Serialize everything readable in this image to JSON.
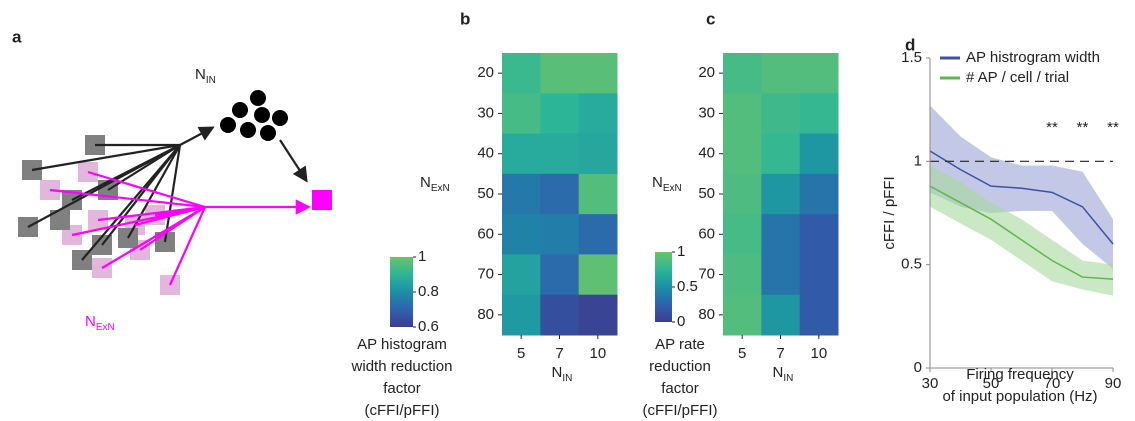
{
  "panel_a": {
    "panel": "a",
    "inhibitory_label": [
      "N",
      "IN"
    ],
    "excitatory_label": [
      "N",
      "ExN"
    ]
  },
  "chart_data": [
    {
      "type": "heatmap",
      "panel": "b",
      "categories": [
        "5",
        "7",
        "10"
      ],
      "rows": [
        "20",
        "30",
        "40",
        "50",
        "60",
        "70",
        "80"
      ],
      "xlabel": [
        "N",
        "IN"
      ],
      "ylabel": [
        "N",
        "ExN"
      ],
      "values": [
        [
          0.92,
          0.97,
          0.97
        ],
        [
          0.94,
          0.9,
          0.87
        ],
        [
          0.87,
          0.87,
          0.86
        ],
        [
          0.75,
          0.72,
          0.96
        ],
        [
          0.77,
          0.76,
          0.72
        ],
        [
          0.85,
          0.72,
          0.98
        ],
        [
          0.83,
          0.65,
          0.62
        ]
      ],
      "zlim": [
        0.6,
        1
      ],
      "zticks": [
        0.6,
        0.8,
        1
      ],
      "colormap": [
        "#3b3c8f",
        "#2f62ae",
        "#1b8fa6",
        "#2db597",
        "#6cc36b"
      ],
      "colorbar_label": [
        "AP histogram",
        "width reduction",
        "factor",
        "(cFFI/pFFI)"
      ]
    },
    {
      "type": "heatmap",
      "panel": "c",
      "categories": [
        "5",
        "7",
        "10"
      ],
      "rows": [
        "20",
        "30",
        "40",
        "50",
        "60",
        "70",
        "80"
      ],
      "xlabel": [
        "N",
        "IN"
      ],
      "ylabel": [
        "N",
        "ExN"
      ],
      "values": [
        [
          0.85,
          0.9,
          0.9
        ],
        [
          0.9,
          0.82,
          0.78
        ],
        [
          0.9,
          0.78,
          0.55
        ],
        [
          0.88,
          0.55,
          0.35
        ],
        [
          0.85,
          0.35,
          0.2
        ],
        [
          0.88,
          0.35,
          0.2
        ],
        [
          0.9,
          0.55,
          0.2
        ]
      ],
      "zlim": [
        0,
        1
      ],
      "zticks": [
        0,
        0.5,
        1
      ],
      "colormap": [
        "#3b3c8f",
        "#2f62ae",
        "#1b8fa6",
        "#2db597",
        "#6cc36b"
      ],
      "colorbar_label": [
        "AP rate",
        "reduction",
        "factor",
        "(cFFI/pFFI)"
      ]
    },
    {
      "type": "line",
      "panel": "d",
      "x": [
        30,
        40,
        50,
        60,
        70,
        80,
        90
      ],
      "xlim": [
        30,
        90
      ],
      "xticks": [
        30,
        50,
        70,
        90
      ],
      "ylim": [
        0,
        1.5
      ],
      "yticks": [
        0,
        0.5,
        1,
        1.5
      ],
      "ylabel": "cFFI / pFFI",
      "xlabel": [
        "Firing frequency",
        "of input population (Hz)"
      ],
      "reference_line": 1,
      "legend": "upper left",
      "series": [
        {
          "name": "AP histrogram width",
          "color": "#3f51a3",
          "band_color": "#9aa3d6",
          "values": [
            1.05,
            0.96,
            0.88,
            0.87,
            0.85,
            0.78,
            0.6
          ],
          "lower": [
            0.85,
            0.78,
            0.75,
            0.76,
            0.76,
            0.6,
            0.48
          ],
          "upper": [
            1.27,
            1.12,
            1.02,
            0.98,
            0.98,
            0.95,
            0.72
          ]
        },
        {
          "name": "# AP / cell / trial",
          "color": "#5cb84e",
          "band_color": "#a9d99c",
          "values": [
            0.88,
            0.8,
            0.72,
            0.62,
            0.52,
            0.44,
            0.43
          ],
          "lower": [
            0.78,
            0.7,
            0.62,
            0.52,
            0.42,
            0.38,
            0.35
          ],
          "upper": [
            0.98,
            0.9,
            0.8,
            0.72,
            0.62,
            0.52,
            0.5
          ]
        }
      ],
      "annotations": [
        {
          "x": 70,
          "text": "**"
        },
        {
          "x": 80,
          "text": "**"
        },
        {
          "x": 90,
          "text": "**"
        }
      ]
    }
  ]
}
